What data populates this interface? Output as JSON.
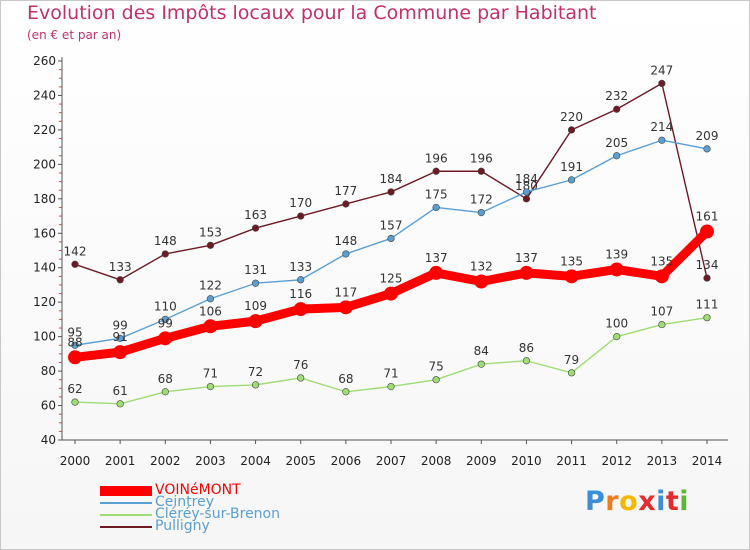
{
  "title": "Evolution des Impôts locaux pour la Commune par Habitant",
  "subtitle": "(en € et par an)",
  "logo": {
    "letters": [
      "P",
      "r",
      "o",
      "x",
      "i",
      "t",
      "i"
    ],
    "colors": [
      "#3b8fd6",
      "#f07a1e",
      "#f5b800",
      "#e32c2c",
      "#3b8fd6",
      "#e32c2c",
      "#5db83a"
    ]
  },
  "chart_data": {
    "type": "line",
    "x": [
      "2000",
      "2001",
      "2002",
      "2003",
      "2004",
      "2005",
      "2006",
      "2007",
      "2008",
      "2009",
      "2010",
      "2011",
      "2012",
      "2013",
      "2014"
    ],
    "ylim": [
      40,
      260
    ],
    "yticks": [
      40,
      60,
      80,
      100,
      120,
      140,
      160,
      180,
      200,
      220,
      240,
      260
    ],
    "grid": false,
    "legend_position": "bottom-left",
    "series": [
      {
        "name": "Pulligny",
        "color": "#6e1a24",
        "values": [
          142,
          133,
          148,
          153,
          163,
          170,
          177,
          184,
          196,
          196,
          180,
          220,
          232,
          247,
          134
        ],
        "labels": [
          "142",
          "133",
          "148",
          "153",
          "163",
          "170",
          "177",
          "184",
          "196",
          "196",
          "180",
          "220",
          "232",
          "247",
          "134"
        ]
      },
      {
        "name": "Ceintrey",
        "color": "#5a9fd4",
        "values": [
          95,
          99,
          110,
          122,
          131,
          133,
          148,
          157,
          175,
          172,
          184,
          191,
          205,
          214,
          209
        ],
        "labels": [
          "95",
          "99",
          "110",
          "122",
          "131",
          "133",
          "148",
          "157",
          "175",
          "172",
          "184",
          "191",
          "205",
          "214",
          "209"
        ]
      },
      {
        "name": "Cléréy-sur-Brenon",
        "color": "#9fdc74",
        "values": [
          62,
          61,
          68,
          71,
          72,
          76,
          68,
          71,
          75,
          84,
          86,
          79,
          100,
          107,
          111
        ],
        "labels": [
          "62",
          "61",
          "68",
          "71",
          "72",
          "76",
          "68",
          "71",
          "75",
          "84",
          "86",
          "79",
          "100",
          "107",
          "111"
        ]
      },
      {
        "name": "VOINéMONT",
        "color": "#ff0000",
        "values": [
          88,
          91,
          99,
          106,
          109,
          116,
          117,
          125,
          137,
          132,
          137,
          135,
          139,
          135,
          161
        ],
        "labels": [
          "88",
          "91",
          "99",
          "106",
          "109",
          "116",
          "117",
          "125",
          "137",
          "132",
          "137",
          "135",
          "139",
          "135",
          "161"
        ]
      }
    ],
    "legend_order": [
      "VOINéMONT",
      "Ceintrey",
      "Cléréy-sur-Brenon",
      "Pulligny"
    ]
  }
}
